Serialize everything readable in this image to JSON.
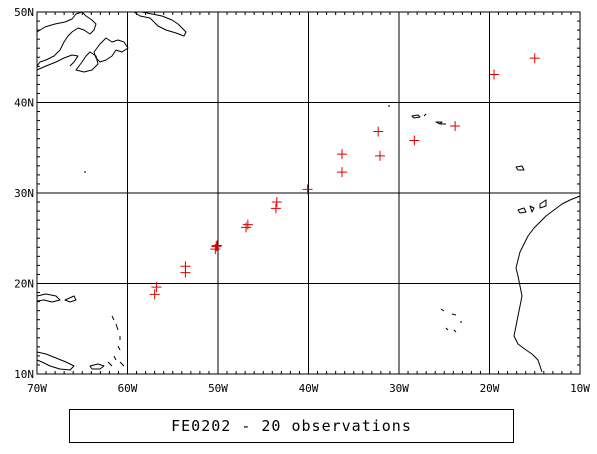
{
  "map": {
    "lon_range": [
      -70,
      -10
    ],
    "lat_range": [
      10,
      50
    ],
    "lon_ticks": [
      -70,
      -60,
      -50,
      -40,
      -30,
      -20,
      -10
    ],
    "lat_ticks": [
      10,
      20,
      30,
      40,
      50
    ],
    "lon_tick_labels": [
      "70W",
      "60W",
      "50W",
      "40W",
      "30W",
      "20W",
      "10W"
    ],
    "lat_tick_labels": [
      "10N",
      "20N",
      "30N",
      "40N",
      "50N"
    ],
    "grid": true,
    "marker_symbol": "+",
    "marker_color": "#e00000",
    "line_color": "#000000"
  },
  "observations": [
    {
      "lon": -57.0,
      "lat": 18.8
    },
    {
      "lon": -56.8,
      "lat": 19.6
    },
    {
      "lon": -53.6,
      "lat": 21.2
    },
    {
      "lon": -53.6,
      "lat": 21.9
    },
    {
      "lon": -50.3,
      "lat": 23.8
    },
    {
      "lon": -50.1,
      "lat": 24.2
    },
    {
      "lon": -46.9,
      "lat": 26.2
    },
    {
      "lon": -46.7,
      "lat": 26.5
    },
    {
      "lon": -43.6,
      "lat": 28.3
    },
    {
      "lon": -43.5,
      "lat": 29.0
    },
    {
      "lon": -40.1,
      "lat": 30.4
    },
    {
      "lon": -36.3,
      "lat": 32.3
    },
    {
      "lon": -36.3,
      "lat": 34.3
    },
    {
      "lon": -32.1,
      "lat": 34.1
    },
    {
      "lon": -32.3,
      "lat": 36.8
    },
    {
      "lon": -28.3,
      "lat": 35.8
    },
    {
      "lon": -23.8,
      "lat": 37.4
    },
    {
      "lon": -19.5,
      "lat": 43.1
    },
    {
      "lon": -15.0,
      "lat": 44.9
    },
    {
      "lon": -50.2,
      "lat": 24.1
    }
  ],
  "caption": "FE0202 - 20 observations"
}
